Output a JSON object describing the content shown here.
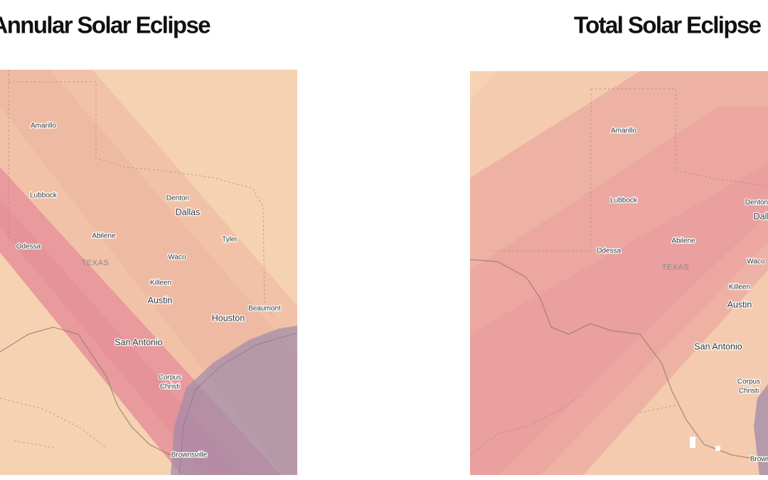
{
  "maps": [
    {
      "title": "Annular Solar Eclipse",
      "labels": [
        "Amarillo",
        "Lubbock",
        "Denton",
        "Dallas",
        "Abilene",
        "Tyler",
        "Odessa",
        "TEXAS",
        "Waco",
        "Killeen",
        "Austin",
        "Houston",
        "Beaumont",
        "San Antonio",
        "Corpus",
        "Christi",
        "Brownsville"
      ]
    },
    {
      "title": "Total Solar Eclipse",
      "labels": [
        "Amarillo",
        "Lubbock",
        "Denton",
        "Dallas",
        "Abilene",
        "Odessa",
        "TEXAS",
        "Waco",
        "Killeen",
        "Austin",
        "San Antonio",
        "Corpus",
        "Christi",
        "Brownsville"
      ]
    }
  ]
}
